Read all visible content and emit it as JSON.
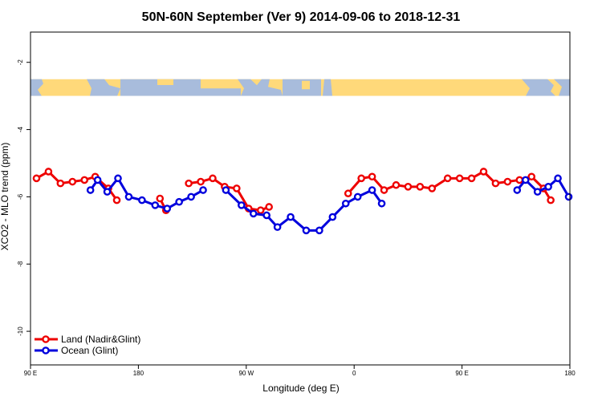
{
  "chart_data": {
    "type": "line",
    "title": "50N-60N September (Ver 9)   2014-09-06 to 2018-12-31",
    "xlabel": "Longitude (deg E)",
    "ylabel": "XCO2 - MLO trend (ppm)",
    "xlim": [
      90,
      540
    ],
    "ylim": [
      -11,
      -1.1
    ],
    "x_ticks": [
      {
        "value": 90,
        "label": "90 E"
      },
      {
        "value": 180,
        "label": "180"
      },
      {
        "value": 270,
        "label": "90 W"
      },
      {
        "value": 360,
        "label": "0"
      },
      {
        "value": 450,
        "label": "90 E"
      },
      {
        "value": 540,
        "label": "180"
      }
    ],
    "y_ticks": [
      {
        "value": -2,
        "label": "-2"
      },
      {
        "value": -4,
        "label": "-4"
      },
      {
        "value": -6,
        "label": "-6"
      },
      {
        "value": -8,
        "label": "-8"
      },
      {
        "value": -10,
        "label": "-10"
      }
    ],
    "legend_position": "bottom-left",
    "map_band": {
      "y_top": -2.5,
      "y_bottom": -3.0,
      "land_color": "#ffd97a",
      "ocean_color": "#a8bcdc"
    },
    "series": [
      {
        "name": "Land (Nadir&Glint)",
        "color": "#ee0000",
        "segments": [
          [
            [
              95,
              -5.45
            ],
            [
              105,
              -5.25
            ],
            [
              115,
              -5.6
            ],
            [
              125,
              -5.55
            ],
            [
              135,
              -5.5
            ],
            [
              144,
              -5.4
            ],
            [
              155,
              -5.75
            ],
            [
              162,
              -6.1
            ]
          ],
          [
            [
              198,
              -6.05
            ],
            [
              203,
              -6.4
            ]
          ],
          [
            [
              222,
              -5.6
            ],
            [
              232,
              -5.55
            ],
            [
              242,
              -5.45
            ],
            [
              252,
              -5.7
            ],
            [
              262,
              -5.75
            ],
            [
              272,
              -6.35
            ],
            [
              282,
              -6.4
            ],
            [
              289,
              -6.3
            ]
          ],
          [
            [
              355,
              -5.9
            ],
            [
              366,
              -5.45
            ],
            [
              375,
              -5.4
            ],
            [
              385,
              -5.8
            ],
            [
              395,
              -5.65
            ],
            [
              405,
              -5.7
            ],
            [
              415,
              -5.7
            ],
            [
              425,
              -5.75
            ],
            [
              438,
              -5.45
            ],
            [
              448,
              -5.45
            ],
            [
              458,
              -5.45
            ],
            [
              468,
              -5.25
            ],
            [
              478,
              -5.6
            ],
            [
              488,
              -5.55
            ],
            [
              498,
              -5.5
            ],
            [
              508,
              -5.4
            ],
            [
              518,
              -5.75
            ],
            [
              524,
              -6.1
            ]
          ]
        ]
      },
      {
        "name": "Ocean (Glint)",
        "color": "#0000dd",
        "segments": [
          [
            [
              140,
              -5.8
            ],
            [
              146,
              -5.5
            ],
            [
              154,
              -5.85
            ],
            [
              163,
              -5.45
            ],
            [
              172,
              -6.0
            ],
            [
              183,
              -6.1
            ],
            [
              194,
              -6.25
            ],
            [
              204,
              -6.35
            ],
            [
              214,
              -6.15
            ],
            [
              224,
              -6.0
            ],
            [
              234,
              -5.8
            ]
          ],
          [
            [
              253,
              -5.8
            ],
            [
              266,
              -6.25
            ],
            [
              276,
              -6.5
            ],
            [
              287,
              -6.55
            ],
            [
              296,
              -6.9
            ],
            [
              307,
              -6.6
            ],
            [
              320,
              -7.0
            ],
            [
              331,
              -7.0
            ],
            [
              342,
              -6.6
            ],
            [
              353,
              -6.2
            ],
            [
              363,
              -6.0
            ],
            [
              375,
              -5.8
            ],
            [
              383,
              -6.2
            ]
          ],
          [
            [
              496,
              -5.8
            ],
            [
              503,
              -5.5
            ],
            [
              513,
              -5.85
            ],
            [
              522,
              -5.7
            ],
            [
              530,
              -5.45
            ],
            [
              539,
              -6.0
            ]
          ]
        ]
      }
    ]
  }
}
